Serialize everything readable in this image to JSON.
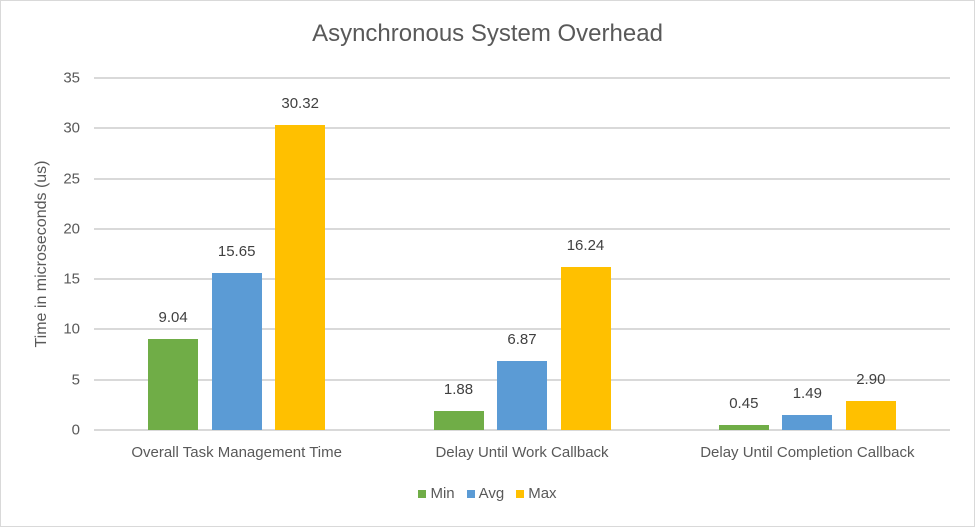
{
  "chart_data": {
    "type": "bar",
    "title": "Asynchronous System Overhead",
    "xlabel": "",
    "ylabel": "Time in microseconds (us)",
    "ylim": [
      0,
      35
    ],
    "yticks": [
      0,
      5,
      10,
      15,
      20,
      25,
      30,
      35
    ],
    "grid": true,
    "legend_position": "bottom",
    "categories": [
      "Overall Task Management Time",
      "Delay Until Work Callback",
      "Delay Until Completion Callback"
    ],
    "series": [
      {
        "name": "Min",
        "color": "#70ad47",
        "values": [
          9.04,
          1.88,
          0.45
        ],
        "labels": [
          "9.04",
          "1.88",
          "0.45"
        ]
      },
      {
        "name": "Avg",
        "color": "#5b9bd5",
        "values": [
          15.65,
          6.87,
          1.49
        ],
        "labels": [
          "15.65",
          "6.87",
          "1.49"
        ]
      },
      {
        "name": "Max",
        "color": "#ffc000",
        "values": [
          30.32,
          16.24,
          2.9
        ],
        "labels": [
          "30.32",
          "16.24",
          "2.90"
        ]
      }
    ]
  }
}
